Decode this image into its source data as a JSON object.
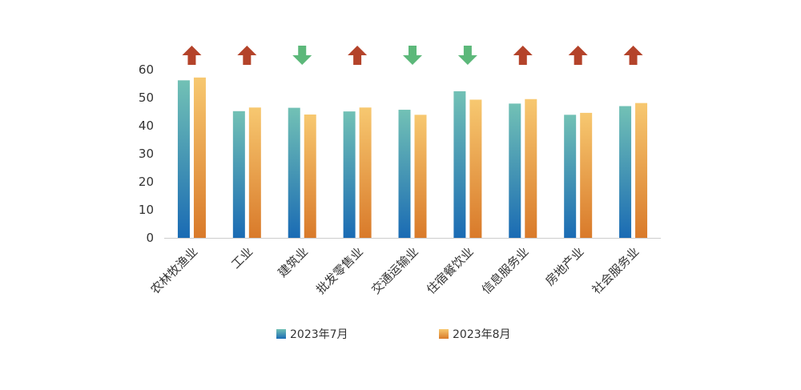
{
  "chart_data": {
    "type": "bar",
    "categories": [
      "农林牧渔业",
      "工业",
      "建筑业",
      "批发零售业",
      "交通运输业",
      "住宿餐饮业",
      "信息服务业",
      "房地产业",
      "社会服务业"
    ],
    "series": [
      {
        "name": "2023年7月",
        "values": [
          56.2,
          45.2,
          46.4,
          45.1,
          45.7,
          52.3,
          47.9,
          43.9,
          47.0
        ]
      },
      {
        "name": "2023年8月",
        "values": [
          57.2,
          46.5,
          44.0,
          46.5,
          43.9,
          49.3,
          49.5,
          44.6,
          48.1
        ]
      }
    ],
    "trend": [
      "up",
      "up",
      "down",
      "up",
      "down",
      "down",
      "up",
      "up",
      "up"
    ],
    "y_ticks": [
      0,
      10,
      20,
      30,
      40,
      50,
      60
    ],
    "ylim": [
      0,
      60
    ],
    "title": "",
    "xlabel": "",
    "ylabel": "",
    "legend_position": "bottom",
    "grid": false
  },
  "colors": {
    "series_jul_top": "#72c1b5",
    "series_jul_bottom": "#1a6bb4",
    "series_aug_top": "#f7c870",
    "series_aug_bottom": "#d97a2a",
    "arrow_up": "#b4432a",
    "arrow_down": "#5cb87a",
    "axis": "#cccccc"
  },
  "icons": {
    "up": "arrow-up-icon",
    "down": "arrow-down-icon"
  }
}
